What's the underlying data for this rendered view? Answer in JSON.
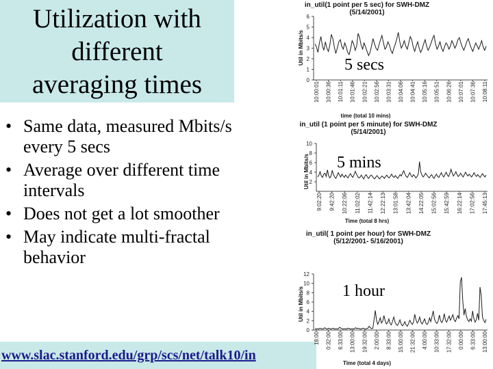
{
  "slide": {
    "title_lines": [
      "Utilization with",
      "different",
      "averaging times"
    ],
    "bullets": [
      {
        "lines": [
          "Same data, measured Mbits/s",
          "every 5 secs"
        ]
      },
      {
        "lines": [
          "Average over different time",
          "intervals"
        ]
      },
      {
        "lines": [
          "Does not get a lot smoother"
        ]
      },
      {
        "lines": [
          "May indicate multi-fractal",
          "behavior"
        ]
      }
    ],
    "bullet_glyph": "•",
    "footer_url": "www.slac.stanford.edu/grp/scs/net/talk10/in"
  },
  "chart_data": [
    {
      "type": "line",
      "title_lines": [
        "in_util(1 point per 5 sec) for SWH-DMZ",
        "(5/14/2001)"
      ],
      "ylabel": "Util in Mbits/s",
      "xlabel": "time (total 10 mins)",
      "ylim": [
        0,
        6
      ],
      "yticks": [
        "0",
        "1",
        "2",
        "3",
        "4",
        "5",
        "6"
      ],
      "xticks": [
        "10:00:01",
        "10:00:36",
        "10:01:11",
        "10:01:46",
        "10:02:21",
        "10:02:56",
        "10:03:31",
        "10:04:06",
        "10:04:41",
        "10:05:16",
        "10:05:51",
        "10:06:26",
        "10:07:01",
        "10:07:36",
        "10:08:11"
      ],
      "annotation": "5 secs",
      "series": [
        {
          "values": [
            3.4,
            3.1,
            2.6,
            3.5,
            4.1,
            3.2,
            2.8,
            3.6,
            3.0,
            2.7,
            3.3,
            4.3,
            3.9,
            3.1,
            2.5,
            3.0,
            3.6,
            3.8,
            3.2,
            2.9,
            3.5,
            3.1,
            2.6,
            2.4,
            3.0,
            3.7,
            3.4,
            2.8,
            3.2,
            4.4,
            4.0,
            3.3,
            2.9,
            3.5,
            3.1,
            2.7,
            2.3,
            2.6,
            3.2,
            3.9,
            3.4,
            3.0,
            2.8,
            3.3,
            3.8,
            4.2,
            3.5,
            2.9,
            3.1,
            3.6,
            3.3,
            2.8,
            2.5,
            3.0,
            3.4,
            3.9,
            4.5,
            3.6,
            3.0,
            3.3,
            3.7,
            3.2,
            2.9,
            3.5,
            4.1,
            3.8,
            3.1,
            2.7,
            3.2,
            3.6,
            3.0,
            2.6,
            2.9,
            3.4,
            3.8,
            3.2,
            2.8,
            3.1,
            3.5,
            3.9,
            4.2,
            3.4,
            2.9,
            3.2,
            3.6,
            3.0,
            2.7,
            3.1,
            3.5,
            3.3,
            2.9,
            3.2,
            3.7,
            3.4,
            3.0,
            3.3,
            3.8,
            4.0,
            3.5,
            3.1,
            2.8,
            3.2,
            3.6,
            3.9,
            3.4,
            3.0,
            2.7,
            3.1,
            3.5,
            3.2,
            2.9,
            3.3,
            3.7,
            3.1,
            2.8,
            3.2
          ]
        }
      ]
    },
    {
      "type": "line",
      "title_lines": [
        "in_util (1 point per 5 minute) for SWH-DMZ",
        "(5/14/2001)"
      ],
      "ylabel": "Util in Mbits/s",
      "xlabel": "Time (total 8 hrs)",
      "ylim": [
        0,
        10
      ],
      "yticks": [
        "2",
        "4",
        "6",
        "8",
        "10"
      ],
      "xticks": [
        "9:02:20",
        "9:42:20",
        "10:22:06",
        "11:02:02",
        "11:42:14",
        "12:22:13",
        "13:01:58",
        "13:42:04",
        "14:22:05",
        "15:02:56",
        "15:42:59",
        "16:22:14",
        "17:02:56",
        "17:45:13"
      ],
      "annotation": "5 mins",
      "series": [
        {
          "values": [
            3.0,
            3.4,
            4.1,
            3.2,
            2.9,
            3.6,
            3.8,
            3.1,
            4.5,
            3.3,
            2.8,
            3.2,
            4.4,
            3.5,
            3.0,
            2.7,
            3.3,
            3.9,
            3.4,
            3.0,
            3.6,
            3.2,
            2.9,
            3.4,
            3.1,
            2.8,
            3.3,
            3.7,
            3.2,
            2.9,
            3.5,
            4.2,
            3.6,
            3.1,
            2.8,
            3.0,
            3.4,
            2.9,
            2.6,
            3.2,
            3.5,
            3.0,
            2.7,
            3.1,
            3.4,
            3.2,
            2.8,
            2.6,
            3.0,
            3.3,
            2.9,
            2.6,
            2.9,
            3.2,
            3.0,
            2.7,
            3.1,
            3.4,
            3.0,
            2.8,
            3.2,
            3.6,
            3.1,
            2.9,
            3.3,
            3.0,
            2.7,
            3.1,
            3.5,
            3.2,
            3.8,
            4.3,
            3.6,
            3.1,
            2.9,
            3.4,
            3.9,
            3.3,
            3.0,
            3.5,
            3.2,
            2.8,
            3.1,
            3.6,
            6.2,
            4.1,
            3.4,
            3.0,
            3.3,
            3.8,
            3.4,
            3.1,
            2.8,
            3.2,
            3.5,
            3.0,
            2.7,
            3.2,
            3.6,
            3.1,
            2.9,
            3.4,
            3.9,
            3.3,
            3.0,
            3.5,
            4.0,
            3.4,
            3.1,
            3.7,
            4.6,
            3.8,
            3.2,
            3.6,
            4.1,
            3.5,
            3.1,
            3.4,
            3.8,
            3.3,
            3.0,
            3.5,
            4.0,
            3.5,
            3.2,
            3.6,
            3.3,
            3.0,
            3.4,
            3.9,
            3.4,
            3.1,
            3.5,
            3.2,
            2.9,
            3.3,
            3.7,
            3.3,
            3.0,
            3.4
          ]
        }
      ]
    },
    {
      "type": "line",
      "title_lines": [
        "in_util( 1 point per hour) for SWH-DMZ",
        "(5/12/2001- 5/16/2001)"
      ],
      "ylabel": "Util in Mbits/s",
      "xlabel": "Time (total 4 days)",
      "ylim": [
        0,
        12
      ],
      "yticks": [
        "0",
        "2",
        "4",
        "6",
        "8",
        "10",
        "12"
      ],
      "xticks": [
        "18:00",
        "0:32:00",
        "6:33:00",
        "13:00:00",
        "19:32:00",
        "2:00:00",
        "8:33:00",
        "15:00:00",
        "21:32:00",
        "4:00:00",
        "10:33:00",
        "17:32:00",
        "0:00:00",
        "6:33:00",
        "13:00:00"
      ],
      "annotation": "1 hour",
      "series": [
        {
          "values": [
            0.3,
            0.2,
            0.3,
            0.2,
            0.4,
            0.3,
            0.2,
            0.3,
            0.5,
            0.3,
            0.2,
            0.4,
            0.3,
            0.2,
            0.3,
            0.4,
            0.2,
            0.3,
            0.2,
            0.3,
            0.6,
            0.4,
            0.3,
            0.2,
            0.3,
            0.2,
            0.3,
            0.4,
            0.3,
            0.2,
            0.3,
            0.2,
            0.3,
            0.5,
            0.3,
            0.4,
            0.3,
            0.2,
            0.3,
            0.4,
            0.3,
            0.2,
            0.3,
            0.4,
            0.8,
            0.5,
            0.3,
            0.4,
            2.2,
            4.2,
            2.1,
            1.2,
            1.8,
            2.6,
            1.5,
            1.9,
            3.1,
            2.0,
            1.3,
            1.6,
            2.4,
            1.4,
            1.1,
            1.9,
            2.8,
            1.7,
            1.2,
            1.0,
            1.5,
            2.2,
            1.3,
            0.9,
            1.2,
            1.8,
            1.1,
            0.8,
            1.4,
            2.1,
            1.6,
            1.2,
            1.7,
            3.4,
            2.2,
            1.5,
            1.9,
            2.8,
            1.7,
            1.3,
            1.8,
            2.4,
            1.5,
            1.2,
            1.6,
            2.6,
            1.8,
            2.9,
            4.1,
            2.4,
            1.7,
            1.4,
            1.9,
            3.2,
            2.0,
            1.6,
            2.2,
            3.5,
            2.1,
            1.7,
            2.4,
            3.0,
            2.1,
            2.6,
            3.3,
            2.2,
            1.8,
            2.5,
            3.1,
            2.4,
            10.2,
            11.3,
            6.4,
            3.2,
            4.6,
            2.9,
            2.2,
            1.8,
            2.4,
            1.9,
            4.1,
            2.5,
            1.7,
            2.2,
            3.6,
            2.1,
            9.2,
            7.4,
            2.8,
            2.1,
            1.6,
            2.3
          ]
        }
      ]
    }
  ]
}
